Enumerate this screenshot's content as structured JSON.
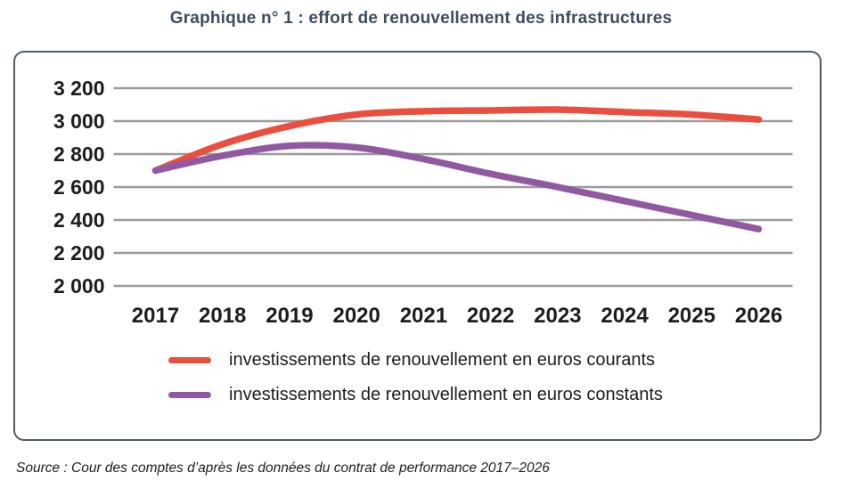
{
  "title": "Graphique n° 1 : effort de renouvellement des infrastructures",
  "source": "Source : Cour des comptes d’après les données du contrat de performance 2017–2026",
  "colors": {
    "red_series": "#e94e3f",
    "purple_series": "#9159a2",
    "grid": "#9c9b9b",
    "axis_text": "#1d1d1b",
    "title": "#3f4c61",
    "panel_border": "#4e5a6a"
  },
  "chart_data": {
    "type": "line",
    "categories": [
      "2017",
      "2018",
      "2019",
      "2020",
      "2021",
      "2022",
      "2023",
      "2024",
      "2025",
      "2026"
    ],
    "series": [
      {
        "name": "investissements de renouvellement en euros courants",
        "color": "#e94e3f",
        "values": [
          2700,
          2860,
          2970,
          3040,
          3060,
          3065,
          3070,
          3055,
          3040,
          3010
        ]
      },
      {
        "name": "investissements de renouvellement en euros constants",
        "color": "#9159a2",
        "values": [
          2700,
          2790,
          2850,
          2840,
          2770,
          2680,
          2600,
          2515,
          2430,
          2345
        ]
      }
    ],
    "title": "Graphique n° 1 : effort de renouvellement des infrastructures",
    "xlabel": "",
    "ylabel": "",
    "ylim": [
      2000,
      3200
    ],
    "ytick_step": 200,
    "grid": true,
    "legend_position": "bottom"
  }
}
